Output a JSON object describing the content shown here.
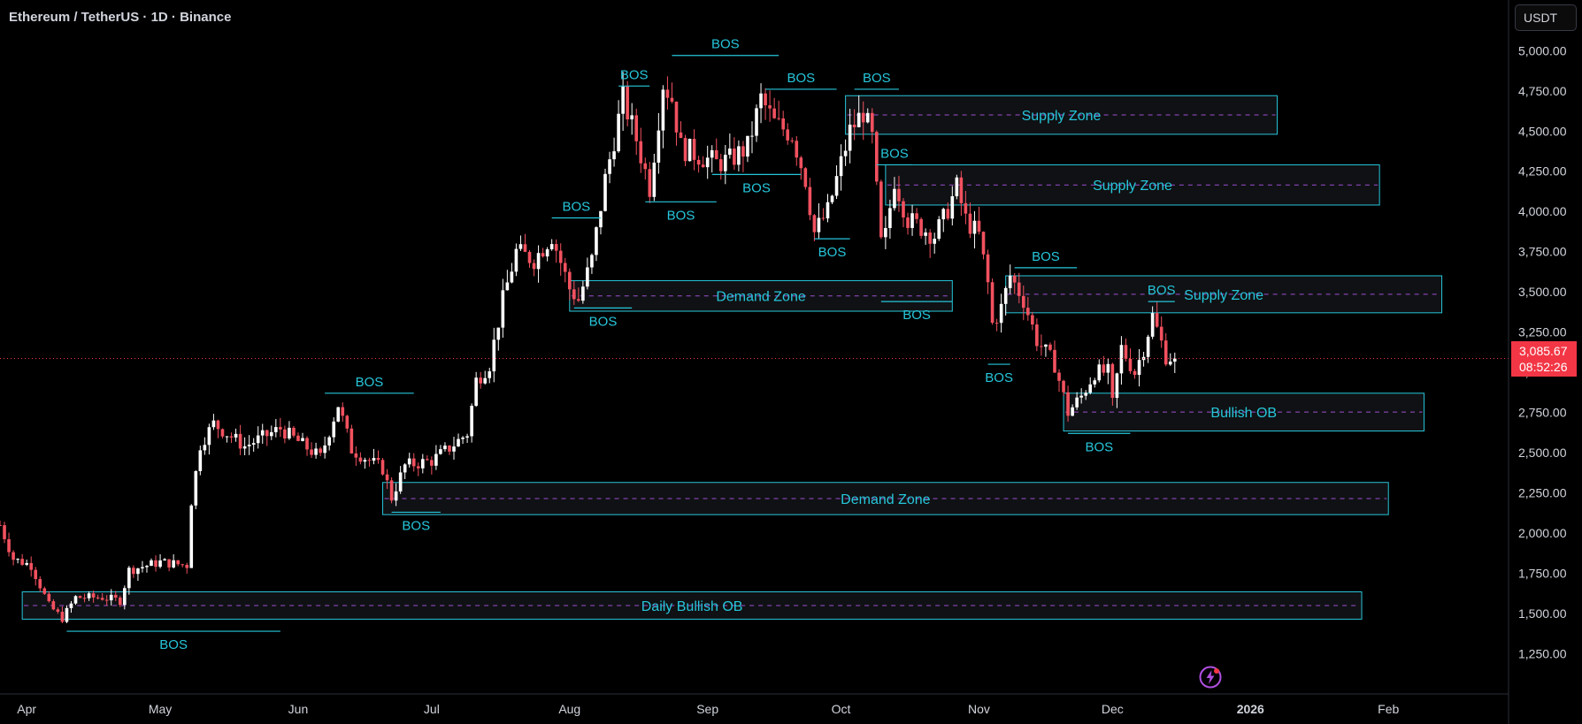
{
  "header": {
    "symbol_title": "Ethereum / TetherUS · 1D · Binance",
    "currency": "USDT"
  },
  "last_price": {
    "value": 3085.67,
    "label": "3,085.67",
    "countdown": "08:52:26"
  },
  "colors": {
    "up": "#ffffff",
    "down": "#f2515f",
    "zone": "#26c6da",
    "zone_fill": "#101114",
    "zone_mid": "#9c4fd0",
    "axis_text": "#d1d4dc",
    "price_line": "#f23645",
    "bolt": "#b04fe0"
  },
  "chart_data": {
    "type": "candlestick",
    "title": "Ethereum / TetherUS · 1D · Binance",
    "x_range": [
      "2025-03-26",
      "2026-02-28"
    ],
    "y_range": [
      1000,
      5150
    ],
    "y_ticks": [
      1250,
      1500,
      1750,
      2000,
      2250,
      2500,
      2750,
      3000,
      3250,
      3500,
      3750,
      4000,
      4250,
      4500,
      4750,
      5000
    ],
    "y_tick_labels": [
      "1,250.00",
      "1,500.00",
      "1,750.00",
      "2,000.00",
      "2,250.00",
      "2,500.00",
      "2,750.00",
      "3,000.00",
      "3,250.00",
      "3,500.00",
      "3,750.00",
      "4,000.00",
      "4,250.00",
      "4,500.00",
      "4,750.00",
      "5,000.00"
    ],
    "x_ticks": [
      {
        "date": "2025-04-01",
        "label": "Apr"
      },
      {
        "date": "2025-05-01",
        "label": "May"
      },
      {
        "date": "2025-06-01",
        "label": "Jun"
      },
      {
        "date": "2025-07-01",
        "label": "Jul"
      },
      {
        "date": "2025-08-01",
        "label": "Aug"
      },
      {
        "date": "2025-09-01",
        "label": "Sep"
      },
      {
        "date": "2025-10-01",
        "label": "Oct"
      },
      {
        "date": "2025-11-01",
        "label": "Nov"
      },
      {
        "date": "2025-12-01",
        "label": "Dec"
      },
      {
        "date": "2026-01-01",
        "label": "2026"
      },
      {
        "date": "2026-02-01",
        "label": "Feb"
      }
    ],
    "price_path": [
      [
        "2025-03-26",
        2050
      ],
      [
        "2025-03-29",
        1840
      ],
      [
        "2025-04-02",
        1800
      ],
      [
        "2025-04-06",
        1550
      ],
      [
        "2025-04-09",
        1470
      ],
      [
        "2025-04-12",
        1600
      ],
      [
        "2025-04-18",
        1600
      ],
      [
        "2025-04-22",
        1580
      ],
      [
        "2025-04-24",
        1770
      ],
      [
        "2025-05-01",
        1820
      ],
      [
        "2025-05-07",
        1800
      ],
      [
        "2025-05-08",
        2200
      ],
      [
        "2025-05-10",
        2550
      ],
      [
        "2025-05-13",
        2680
      ],
      [
        "2025-05-20",
        2540
      ],
      [
        "2025-05-28",
        2650
      ],
      [
        "2025-06-06",
        2470
      ],
      [
        "2025-06-10",
        2800
      ],
      [
        "2025-06-13",
        2520
      ],
      [
        "2025-06-20",
        2400
      ],
      [
        "2025-06-22",
        2220
      ],
      [
        "2025-06-25",
        2420
      ],
      [
        "2025-07-01",
        2450
      ],
      [
        "2025-07-05",
        2530
      ],
      [
        "2025-07-09",
        2620
      ],
      [
        "2025-07-11",
        2950
      ],
      [
        "2025-07-14",
        3050
      ],
      [
        "2025-07-17",
        3450
      ],
      [
        "2025-07-20",
        3750
      ],
      [
        "2025-07-24",
        3700
      ],
      [
        "2025-07-28",
        3850
      ],
      [
        "2025-08-01",
        3520
      ],
      [
        "2025-08-03",
        3450
      ],
      [
        "2025-08-06",
        3700
      ],
      [
        "2025-08-09",
        4200
      ],
      [
        "2025-08-13",
        4700
      ],
      [
        "2025-08-16",
        4450
      ],
      [
        "2025-08-19",
        4150
      ],
      [
        "2025-08-22",
        4800
      ],
      [
        "2025-08-24",
        4700
      ],
      [
        "2025-08-26",
        4400
      ],
      [
        "2025-08-30",
        4350
      ],
      [
        "2025-09-03",
        4300
      ],
      [
        "2025-09-06",
        4320
      ],
      [
        "2025-09-10",
        4400
      ],
      [
        "2025-09-13",
        4700
      ],
      [
        "2025-09-16",
        4550
      ],
      [
        "2025-09-20",
        4480
      ],
      [
        "2025-09-23",
        4200
      ],
      [
        "2025-09-25",
        3870
      ],
      [
        "2025-09-28",
        4000
      ],
      [
        "2025-10-01",
        4300
      ],
      [
        "2025-10-03",
        4500
      ],
      [
        "2025-10-06",
        4620
      ],
      [
        "2025-10-08",
        4450
      ],
      [
        "2025-10-10",
        3800
      ],
      [
        "2025-10-11",
        3850
      ],
      [
        "2025-10-13",
        4200
      ],
      [
        "2025-10-16",
        3950
      ],
      [
        "2025-10-19",
        3900
      ],
      [
        "2025-10-22",
        3850
      ],
      [
        "2025-10-24",
        3950
      ],
      [
        "2025-10-27",
        4150
      ],
      [
        "2025-10-29",
        3950
      ],
      [
        "2025-11-01",
        3850
      ],
      [
        "2025-11-03",
        3550
      ],
      [
        "2025-11-04",
        3300
      ],
      [
        "2025-11-06",
        3400
      ],
      [
        "2025-11-08",
        3600
      ],
      [
        "2025-11-11",
        3450
      ],
      [
        "2025-11-14",
        3200
      ],
      [
        "2025-11-18",
        3050
      ],
      [
        "2025-11-21",
        2750
      ],
      [
        "2025-11-24",
        2850
      ],
      [
        "2025-11-27",
        3000
      ],
      [
        "2025-11-30",
        3000
      ],
      [
        "2025-12-01",
        2800
      ],
      [
        "2025-12-03",
        3150
      ],
      [
        "2025-12-06",
        3000
      ],
      [
        "2025-12-08",
        3150
      ],
      [
        "2025-12-10",
        3350
      ],
      [
        "2025-12-13",
        3100
      ],
      [
        "2025-12-15",
        3085.67
      ]
    ],
    "zones": [
      {
        "label": "Supply Zone",
        "start": "2025-10-02",
        "end": "2026-01-07",
        "low": 4480,
        "high": 4720
      },
      {
        "label": "Supply Zone",
        "start": "2025-10-11",
        "end": "2026-01-30",
        "low": 4040,
        "high": 4290
      },
      {
        "label": "Demand Zone",
        "start": "2025-08-01",
        "end": "2025-10-26",
        "low": 3380,
        "high": 3570
      },
      {
        "label": "Supply Zone",
        "start": "2025-11-07",
        "end": "2026-02-13",
        "low": 3370,
        "high": 3600
      },
      {
        "label": "Bullish OB",
        "start": "2025-11-20",
        "end": "2026-02-09",
        "low": 2635,
        "high": 2870
      },
      {
        "label": "Demand Zone",
        "start": "2025-06-20",
        "end": "2026-02-01",
        "low": 2115,
        "high": 2315
      },
      {
        "label": "Daily Bullish OB",
        "start": "2025-03-31",
        "end": "2026-01-26",
        "low": 1465,
        "high": 1635
      }
    ],
    "bos_markers": [
      {
        "label": "BOS",
        "start": "2025-04-10",
        "end": "2025-05-28",
        "price": 1390,
        "label_pos": "below"
      },
      {
        "label": "BOS",
        "start": "2025-06-07",
        "end": "2025-06-27",
        "price": 2870,
        "label_pos": "above"
      },
      {
        "label": "BOS",
        "start": "2025-06-22",
        "end": "2025-07-03",
        "price": 2130,
        "label_pos": "below"
      },
      {
        "label": "BOS",
        "start": "2025-07-28",
        "end": "2025-08-08",
        "price": 3960,
        "label_pos": "above"
      },
      {
        "label": "BOS",
        "start": "2025-08-02",
        "end": "2025-08-15",
        "price": 3400,
        "label_pos": "below"
      },
      {
        "label": "BOS",
        "start": "2025-08-12",
        "end": "2025-08-19",
        "price": 4780,
        "label_pos": "above"
      },
      {
        "label": "BOS",
        "start": "2025-08-18",
        "end": "2025-09-03",
        "price": 4060,
        "label_pos": "below"
      },
      {
        "label": "BOS",
        "start": "2025-08-24",
        "end": "2025-09-17",
        "price": 4970,
        "label_pos": "above"
      },
      {
        "label": "BOS",
        "start": "2025-09-02",
        "end": "2025-09-22",
        "price": 4230,
        "label_pos": "below"
      },
      {
        "label": "BOS",
        "start": "2025-09-14",
        "end": "2025-09-30",
        "price": 4760,
        "label_pos": "above"
      },
      {
        "label": "BOS",
        "start": "2025-09-25",
        "end": "2025-10-03",
        "price": 3830,
        "label_pos": "below"
      },
      {
        "label": "BOS",
        "start": "2025-10-04",
        "end": "2025-10-14",
        "price": 4760,
        "label_pos": "above"
      },
      {
        "label": "BOS",
        "start": "2025-10-09",
        "end": "2025-10-17",
        "price": 4290,
        "label_pos": "above"
      },
      {
        "label": "BOS",
        "start": "2025-10-10",
        "end": "2025-10-26",
        "price": 3440,
        "label_pos": "below"
      },
      {
        "label": "BOS",
        "start": "2025-11-03",
        "end": "2025-11-08",
        "price": 3050,
        "label_pos": "below"
      },
      {
        "label": "BOS",
        "start": "2025-11-09",
        "end": "2025-11-23",
        "price": 3650,
        "label_pos": "above"
      },
      {
        "label": "BOS",
        "start": "2025-11-21",
        "end": "2025-12-05",
        "price": 2620,
        "label_pos": "below"
      },
      {
        "label": "BOS",
        "start": "2025-12-09",
        "end": "2025-12-15",
        "price": 3440,
        "label_pos": "above"
      }
    ]
  }
}
